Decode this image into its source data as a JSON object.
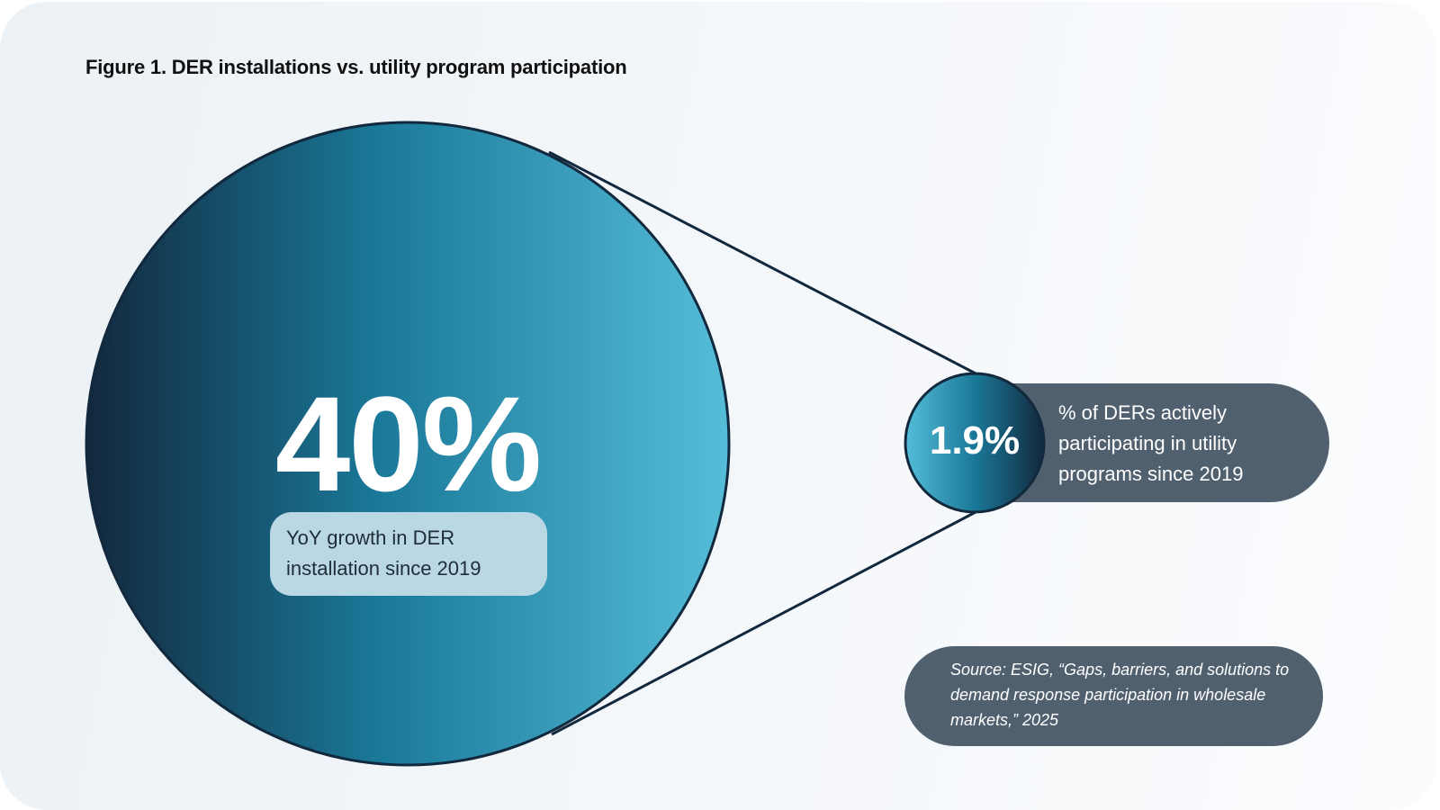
{
  "title": "Figure 1. DER installations vs. utility program participation",
  "big_stat": {
    "value": "40%",
    "label": "YoY growth in DER installation since 2019"
  },
  "small_stat": {
    "value": "1.9%",
    "label": "% of DERs actively participating in utility programs since 2019"
  },
  "source": "Source: ESIG, “Gaps, barriers, and solutions to demand response participation in wholesale markets,” 2025",
  "colors": {
    "dark": "#12283d",
    "teal": "#1a7898",
    "light": "#55bdd8",
    "pill": "#51606f",
    "label_bg": "#b9d8e3"
  }
}
